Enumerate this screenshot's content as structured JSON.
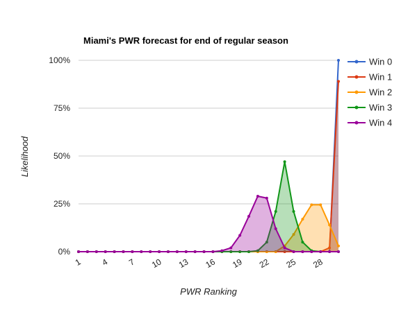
{
  "chart_data": {
    "type": "area",
    "title": "Miami's PWR forecast for end of regular season",
    "xlabel": "PWR Ranking",
    "ylabel": "Likelihood",
    "x": [
      1,
      2,
      3,
      4,
      5,
      6,
      7,
      8,
      9,
      10,
      11,
      12,
      13,
      14,
      15,
      16,
      17,
      18,
      19,
      20,
      21,
      22,
      23,
      24,
      25,
      26,
      27,
      28,
      29,
      30
    ],
    "x_tick_labels": [
      "1",
      "4",
      "7",
      "10",
      "13",
      "16",
      "19",
      "22",
      "25",
      "28"
    ],
    "x_tick_values": [
      1,
      4,
      7,
      10,
      13,
      16,
      19,
      22,
      25,
      28
    ],
    "y_ticks": [
      0,
      25,
      50,
      75,
      100
    ],
    "y_tick_labels": [
      "0%",
      "25%",
      "50%",
      "75%",
      "100%"
    ],
    "ylim": [
      0,
      100
    ],
    "xlim": [
      1,
      30
    ],
    "grid": true,
    "legend_position": "right",
    "series": [
      {
        "name": "Win 0",
        "color": "#3366cc",
        "values": [
          0,
          0,
          0,
          0,
          0,
          0,
          0,
          0,
          0,
          0,
          0,
          0,
          0,
          0,
          0,
          0,
          0,
          0,
          0,
          0,
          0,
          0,
          0,
          0,
          0,
          0,
          0,
          0,
          0,
          100
        ]
      },
      {
        "name": "Win 1",
        "color": "#dc3912",
        "values": [
          0,
          0,
          0,
          0,
          0,
          0,
          0,
          0,
          0,
          0,
          0,
          0,
          0,
          0,
          0,
          0,
          0,
          0,
          0,
          0,
          0,
          0,
          0,
          0,
          0,
          0,
          0,
          0,
          2,
          89
        ]
      },
      {
        "name": "Win 2",
        "color": "#ff9900",
        "values": [
          0,
          0,
          0,
          0,
          0,
          0,
          0,
          0,
          0,
          0,
          0,
          0,
          0,
          0,
          0,
          0,
          0,
          0,
          0,
          0,
          0,
          0,
          0,
          3,
          9,
          17,
          24.5,
          24.5,
          14,
          3
        ]
      },
      {
        "name": "Win 3",
        "color": "#109618",
        "values": [
          0,
          0,
          0,
          0,
          0,
          0,
          0,
          0,
          0,
          0,
          0,
          0,
          0,
          0,
          0,
          0,
          0,
          0,
          0,
          0,
          0.5,
          5,
          21,
          47,
          21,
          5,
          0.5,
          0,
          0,
          0
        ]
      },
      {
        "name": "Win 4",
        "color": "#990099",
        "values": [
          0,
          0,
          0,
          0,
          0,
          0,
          0,
          0,
          0,
          0,
          0,
          0,
          0,
          0,
          0,
          0,
          0.5,
          2,
          8.5,
          18.5,
          29,
          28,
          12,
          2,
          0,
          0,
          0,
          0,
          0,
          0
        ]
      }
    ]
  }
}
